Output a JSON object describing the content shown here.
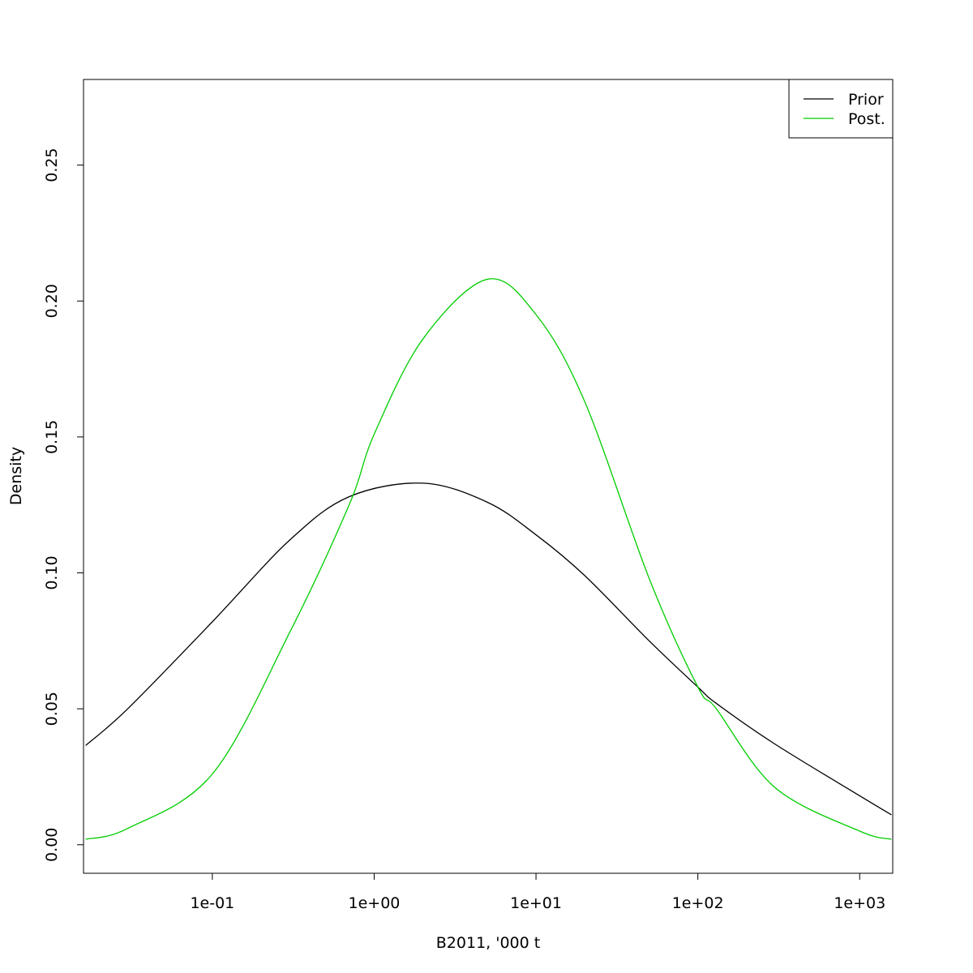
{
  "chart_data": {
    "type": "line",
    "xlabel": "B2011, '000 t",
    "ylabel": "Density",
    "x_scale": "log10",
    "xlim": [
      0.016,
      1600
    ],
    "ylim": [
      -0.0105,
      0.2815
    ],
    "x_ticks": [
      0.1,
      1,
      10,
      100,
      1000
    ],
    "x_tick_labels": [
      "1e-01",
      "1e+00",
      "1e+01",
      "1e+02",
      "1e+03"
    ],
    "y_ticks": [
      0,
      0.05,
      0.1,
      0.15,
      0.2,
      0.25
    ],
    "y_tick_labels": [
      "0.00",
      "0.05",
      "0.10",
      "0.15",
      "0.20",
      "0.25"
    ],
    "grid": false,
    "legend_position": "top-right",
    "series": [
      {
        "name": "Prior",
        "color": "#000000",
        "x": [
          0.0165,
          0.03,
          0.1,
          0.3,
          0.7,
          2.0,
          5.0,
          10,
          20,
          50,
          100,
          130,
          300,
          1000,
          1570
        ],
        "values": [
          0.0365,
          0.05,
          0.082,
          0.112,
          0.128,
          0.133,
          0.126,
          0.114,
          0.099,
          0.075,
          0.058,
          0.052,
          0.037,
          0.018,
          0.011
        ]
      },
      {
        "name": "Post.",
        "color": "#00cd00",
        "x": [
          0.0165,
          0.03,
          0.1,
          0.3,
          0.7,
          1.0,
          2.0,
          5.0,
          10,
          20,
          50,
          100,
          130,
          300,
          1000,
          1570
        ],
        "values": [
          0.002,
          0.006,
          0.026,
          0.078,
          0.125,
          0.151,
          0.186,
          0.208,
          0.195,
          0.163,
          0.098,
          0.058,
          0.05,
          0.021,
          0.005,
          0.002
        ]
      }
    ]
  }
}
